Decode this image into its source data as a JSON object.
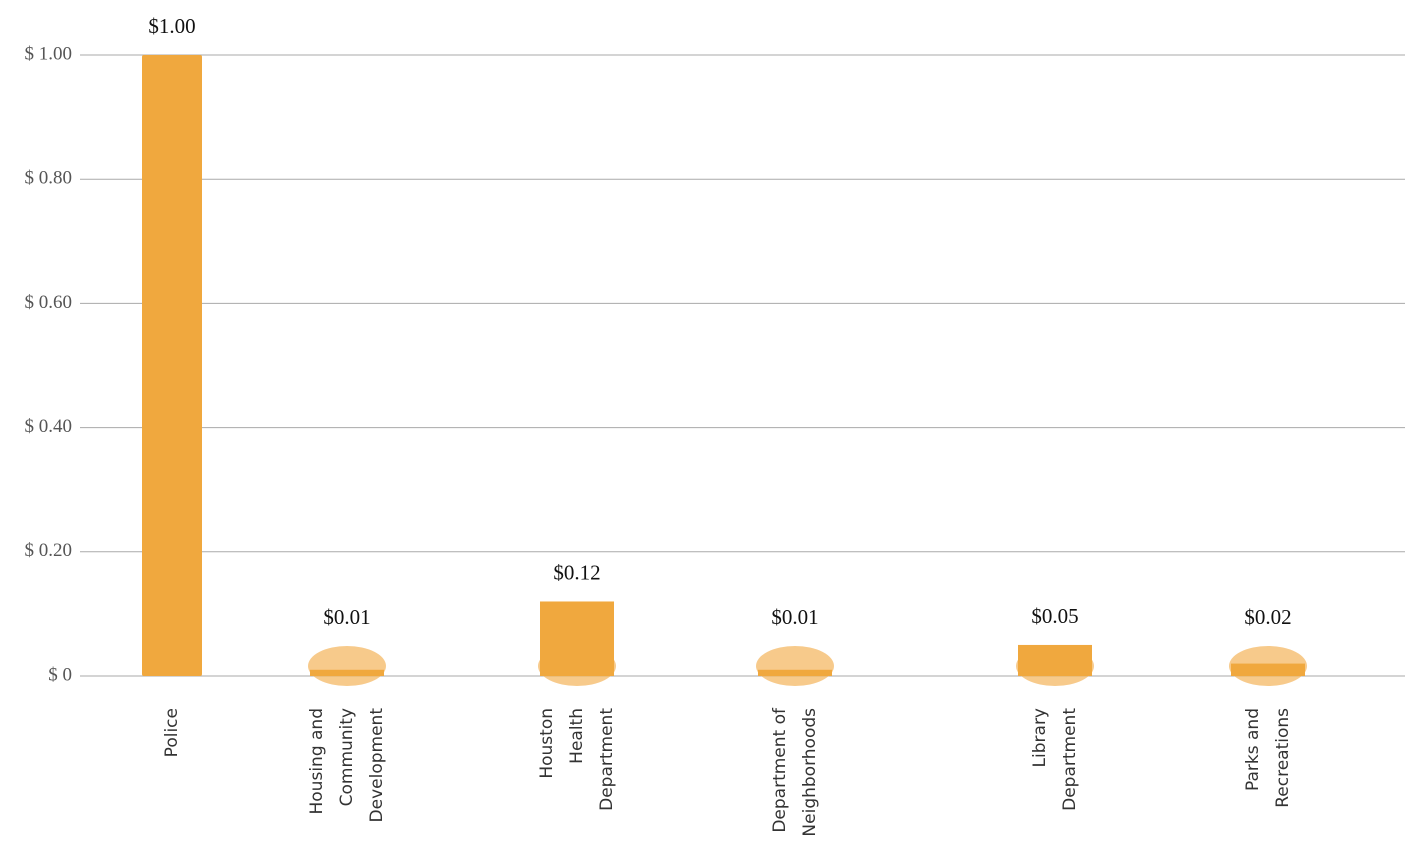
{
  "chart_data": {
    "type": "bar",
    "categories": [
      [
        "Police"
      ],
      [
        "Housing and",
        "Community",
        "Development"
      ],
      [
        "Houston",
        "Health",
        "Department"
      ],
      [
        "Department of",
        "Neighborhoods"
      ],
      [
        "Library",
        "Department"
      ],
      [
        "Parks and",
        "Recreations"
      ]
    ],
    "values": [
      1.0,
      0.01,
      0.12,
      0.01,
      0.05,
      0.02
    ],
    "value_labels": [
      "$1.00",
      "$0.01",
      "$0.12",
      "$0.01",
      "$0.05",
      "$0.02"
    ],
    "color": "#f0a83e",
    "ylim": [
      0,
      1
    ],
    "yticks": [
      {
        "value": 0,
        "label": "$ 0"
      },
      {
        "value": 0.2,
        "label": "$ 0.20"
      },
      {
        "value": 0.4,
        "label": "$ 0.40"
      },
      {
        "value": 0.6,
        "label": "$ 0.60"
      },
      {
        "value": 0.8,
        "label": "$ 0.80"
      },
      {
        "value": 1,
        "label": "$ 1.00"
      }
    ],
    "grid": true
  }
}
